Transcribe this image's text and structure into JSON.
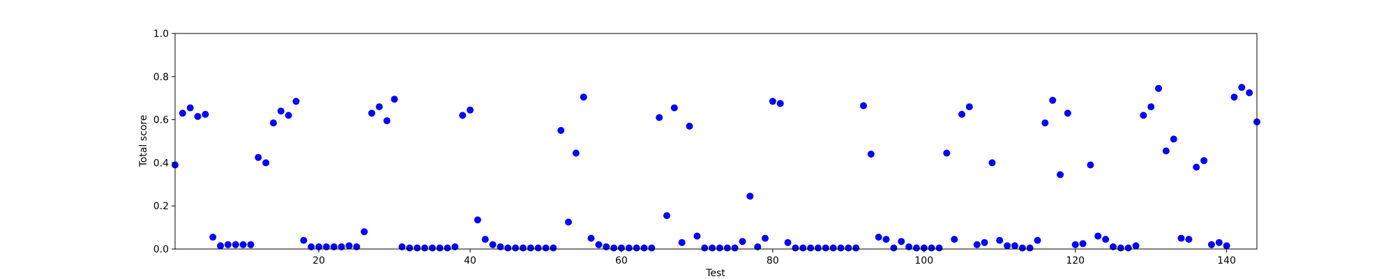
{
  "chart_data": {
    "type": "scatter",
    "title": "",
    "xlabel": "Test",
    "ylabel": "Total score",
    "xlim": [
      1,
      144
    ],
    "ylim": [
      0.0,
      1.0
    ],
    "xticks": [
      20,
      40,
      60,
      80,
      100,
      120,
      140
    ],
    "yticks": [
      0.0,
      0.2,
      0.4,
      0.6,
      0.8,
      1.0
    ],
    "ytick_labels": [
      "0.0",
      "0.2",
      "0.4",
      "0.6",
      "0.8",
      "1.0"
    ],
    "grid": false,
    "marker_color": "#0000ff",
    "series": [
      {
        "x": [
          1,
          2,
          3,
          4,
          5,
          6,
          7,
          8,
          9,
          10,
          11,
          12,
          13,
          14,
          15,
          16,
          17,
          18,
          19,
          20,
          21,
          22,
          23,
          24,
          25,
          26,
          27,
          28,
          29,
          30,
          31,
          32,
          33,
          34,
          35,
          36,
          37,
          38,
          39,
          40,
          41,
          42,
          43,
          44,
          45,
          46,
          47,
          48,
          49,
          50,
          51,
          52,
          53,
          54,
          55,
          56,
          57,
          58,
          59,
          60,
          61,
          62,
          63,
          64,
          65,
          66,
          67,
          68,
          69,
          70,
          71,
          72,
          73,
          74,
          75,
          76,
          77,
          78,
          79,
          80,
          81,
          82,
          83,
          84,
          85,
          86,
          87,
          88,
          89,
          90,
          91,
          92,
          93,
          94,
          95,
          96,
          97,
          98,
          99,
          100,
          101,
          102,
          103,
          104,
          105,
          106,
          107,
          108,
          109,
          110,
          111,
          112,
          113,
          114,
          115,
          116,
          117,
          118,
          119,
          120,
          121,
          122,
          123,
          124,
          125,
          126,
          127,
          128,
          129,
          130,
          131,
          132,
          133,
          134,
          135,
          136,
          137,
          138,
          139,
          140,
          141,
          142,
          143,
          144
        ],
        "y": [
          0.39,
          0.63,
          0.655,
          0.615,
          0.625,
          0.055,
          0.015,
          0.02,
          0.02,
          0.02,
          0.02,
          0.425,
          0.4,
          0.585,
          0.64,
          0.62,
          0.685,
          0.04,
          0.01,
          0.01,
          0.01,
          0.01,
          0.01,
          0.015,
          0.01,
          0.08,
          0.63,
          0.66,
          0.595,
          0.695,
          0.01,
          0.005,
          0.005,
          0.005,
          0.005,
          0.005,
          0.005,
          0.01,
          0.62,
          0.645,
          0.135,
          0.045,
          0.02,
          0.01,
          0.005,
          0.005,
          0.005,
          0.005,
          0.005,
          0.005,
          0.005,
          0.55,
          0.125,
          0.445,
          0.705,
          0.05,
          0.02,
          0.01,
          0.005,
          0.005,
          0.005,
          0.005,
          0.005,
          0.005,
          0.61,
          0.155,
          0.655,
          0.03,
          0.57,
          0.06,
          0.005,
          0.005,
          0.005,
          0.005,
          0.005,
          0.035,
          0.245,
          0.01,
          0.05,
          0.685,
          0.675,
          0.03,
          0.005,
          0.005,
          0.005,
          0.005,
          0.005,
          0.005,
          0.005,
          0.005,
          0.005,
          0.665,
          0.44,
          0.055,
          0.045,
          0.005,
          0.035,
          0.01,
          0.005,
          0.005,
          0.005,
          0.005,
          0.445,
          0.045,
          0.625,
          0.66,
          0.02,
          0.03,
          0.4,
          0.04,
          0.015,
          0.015,
          0.005,
          0.005,
          0.04,
          0.585,
          0.69,
          0.345,
          0.63,
          0.02,
          0.025,
          0.39,
          0.06,
          0.045,
          0.01,
          0.005,
          0.005,
          0.015,
          0.62,
          0.66,
          0.745,
          0.455,
          0.51,
          0.05,
          0.045,
          0.38,
          0.41,
          0.02,
          0.03,
          0.015,
          0.705,
          0.75,
          0.725,
          0.59
        ]
      }
    ]
  }
}
